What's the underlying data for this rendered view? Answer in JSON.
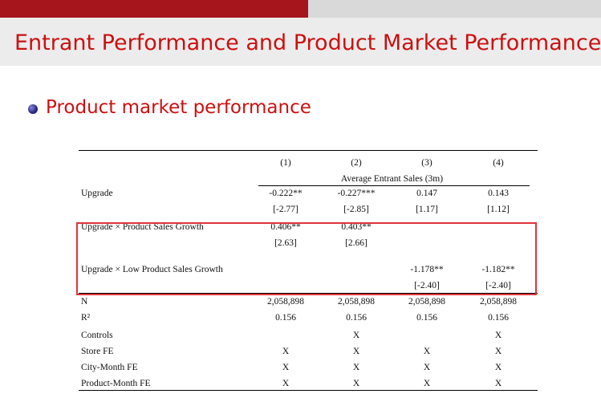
{
  "slide": {
    "title": "Entrant Performance and Product Market Performance",
    "bullet": "Product market performance"
  },
  "table": {
    "columns": [
      "(1)",
      "(2)",
      "(3)",
      "(4)"
    ],
    "dep_var": "Average Entrant Sales (3m)",
    "rows": {
      "upgrade": {
        "label": "Upgrade",
        "coef": [
          "-0.222**",
          "-0.227***",
          "0.147",
          "0.143"
        ],
        "t": [
          "[-2.77]",
          "[-2.85]",
          "[1.17]",
          "[1.12]"
        ]
      },
      "upgrade_growth": {
        "label": "Upgrade × Product Sales Growth",
        "coef": [
          "0.406**",
          "0.403**",
          "",
          ""
        ],
        "t": [
          "[2.63]",
          "[2.66]",
          "",
          ""
        ]
      },
      "upgrade_low": {
        "label": "Upgrade × Low Product Sales Growth",
        "coef": [
          "",
          "",
          "-1.178**",
          "-1.182**"
        ],
        "t": [
          "",
          "",
          "[-2.40]",
          "[-2.40]"
        ]
      },
      "n": {
        "label": "N",
        "vals": [
          "2,058,898",
          "2,058,898",
          "2,058,898",
          "2,058,898"
        ]
      },
      "r2": {
        "label": "R²",
        "vals": [
          "0.156",
          "0.156",
          "0.156",
          "0.156"
        ]
      },
      "controls": {
        "label": "Controls",
        "vals": [
          "",
          "X",
          "",
          "X"
        ]
      },
      "store_fe": {
        "label": "Store FE",
        "vals": [
          "X",
          "X",
          "X",
          "X"
        ]
      },
      "city_month_fe": {
        "label": "City-Month FE",
        "vals": [
          "X",
          "X",
          "X",
          "X"
        ]
      },
      "product_month_fe": {
        "label": "Product-Month FE",
        "vals": [
          "X",
          "X",
          "X",
          "X"
        ]
      }
    }
  },
  "colors": {
    "accent_red": "#a6141c",
    "title_red": "#cc1010",
    "highlight_box": "#e0343c",
    "top_gray": "#d9d9d9",
    "title_bg": "#ececec"
  }
}
